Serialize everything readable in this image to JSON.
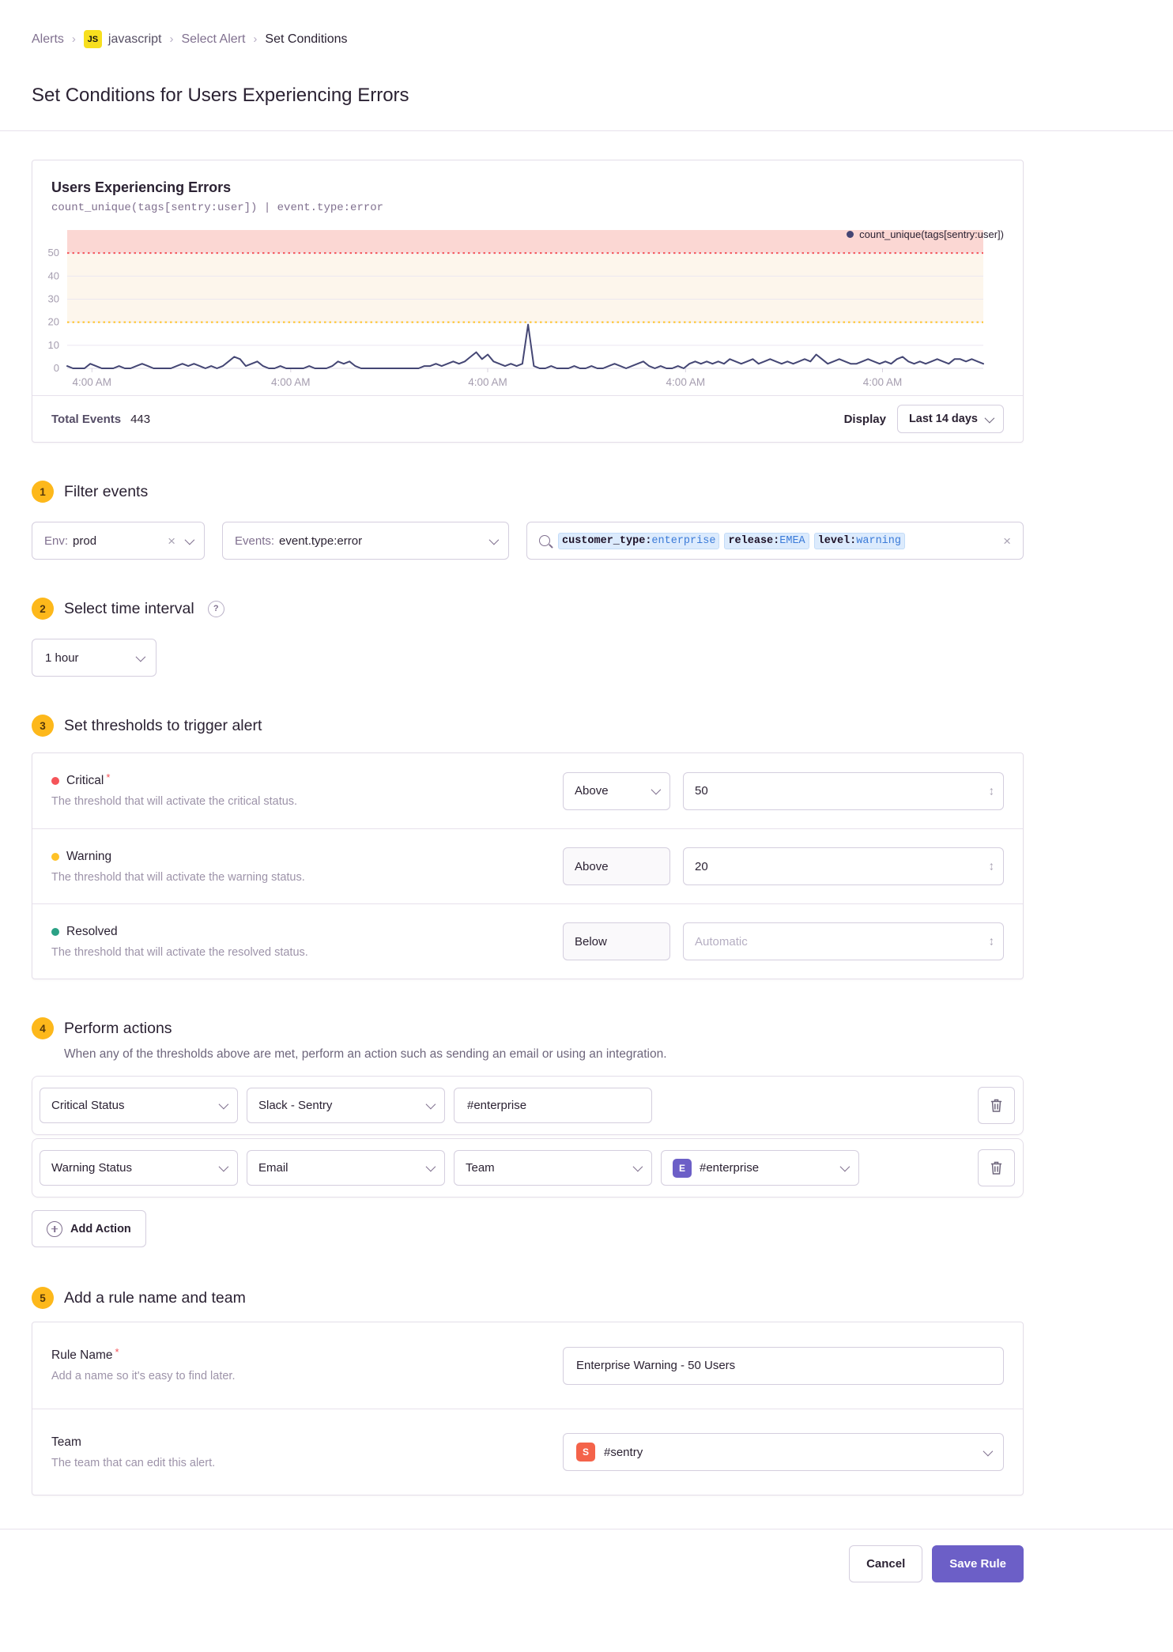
{
  "icons": {
    "close": "×",
    "stepper": "↕",
    "help": "?"
  },
  "breadcrumb": {
    "project_badge": "JS",
    "items": [
      "Alerts",
      "javascript",
      "Select Alert",
      "Set Conditions"
    ]
  },
  "page": {
    "title": "Set Conditions for Users Experiencing Errors"
  },
  "chart_panel": {
    "title": "Users Experiencing Errors",
    "query": "count_unique(tags[sentry:user]) | event.type:error",
    "legend": "count_unique(tags[sentry:user])",
    "footer": {
      "total_label": "Total Events",
      "total_value": "443",
      "display_label": "Display",
      "range": "Last 14 days"
    }
  },
  "chart_data": {
    "type": "line",
    "title": "Users Experiencing Errors",
    "ylabel": "",
    "xlabel": "",
    "ylim": [
      0,
      60
    ],
    "y_ticks": [
      0,
      10,
      20,
      30,
      40,
      50
    ],
    "x_tick_labels": [
      "4:00 AM",
      "4:00 AM",
      "4:00 AM",
      "4:00 AM",
      "4:00 AM"
    ],
    "x_tick_positions": [
      0.027,
      0.244,
      0.459,
      0.675,
      0.89
    ],
    "thresholds": {
      "critical": 50,
      "warning": 20
    },
    "colors": {
      "line": "#444674",
      "critical": "#f55459",
      "warning": "#ffc227",
      "critical_band": "#fbd7d3",
      "warning_band": "#fdf6ec"
    },
    "legend_position": "top-right",
    "series": [
      {
        "name": "count_unique(tags[sentry:user])",
        "values": [
          1,
          0,
          0,
          0,
          2,
          1,
          0,
          0,
          0,
          1,
          0,
          0,
          1,
          2,
          1,
          0,
          0,
          0,
          0,
          1,
          2,
          1,
          2,
          1,
          0,
          1,
          0,
          1,
          3,
          5,
          4,
          1,
          2,
          3,
          1,
          0,
          0,
          1,
          0,
          0,
          0,
          0,
          1,
          0,
          0,
          0,
          1,
          3,
          2,
          3,
          1,
          0,
          0,
          0,
          0,
          0,
          0,
          0,
          0,
          0,
          0,
          0,
          1,
          1,
          2,
          1,
          2,
          3,
          2,
          3,
          5,
          7,
          4,
          6,
          3,
          2,
          1,
          2,
          1,
          2,
          19,
          1,
          0,
          0,
          1,
          0,
          0,
          0,
          1,
          0,
          0,
          1,
          0,
          0,
          1,
          2,
          1,
          0,
          1,
          2,
          3,
          1,
          0,
          1,
          0,
          0,
          1,
          0,
          2,
          3,
          2,
          3,
          2,
          3,
          2,
          4,
          3,
          2,
          3,
          4,
          2,
          3,
          4,
          3,
          2,
          3,
          2,
          3,
          4,
          3,
          6,
          4,
          2,
          3,
          4,
          3,
          2,
          2,
          3,
          4,
          3,
          2,
          3,
          2,
          4,
          5,
          3,
          2,
          3,
          2,
          3,
          4,
          3,
          2,
          4,
          4,
          3,
          4,
          3,
          2
        ]
      }
    ]
  },
  "sections": {
    "filter": {
      "num": "1",
      "title": "Filter events",
      "env": {
        "label": "Env:",
        "value": "prod"
      },
      "events": {
        "label": "Events:",
        "value": "event.type:error"
      },
      "search": {
        "tokens": [
          {
            "key": "customer_type:",
            "value": "enterprise"
          },
          {
            "key": "release:",
            "value": "EMEA"
          },
          {
            "key": "level:",
            "value": "warning"
          }
        ]
      }
    },
    "interval": {
      "num": "2",
      "title": "Select time interval",
      "value": "1 hour"
    },
    "thresholds": {
      "num": "3",
      "title": "Set thresholds to trigger alert",
      "rows": [
        {
          "name": "Critical",
          "required": true,
          "desc": "The threshold that will activate the critical status.",
          "op": "Above",
          "value": "50",
          "placeholder": "",
          "dot": "#f55459"
        },
        {
          "name": "Warning",
          "required": false,
          "desc": "The threshold that will activate the warning status.",
          "op": "Above",
          "value": "20",
          "placeholder": "",
          "dot": "#ffc227"
        },
        {
          "name": "Resolved",
          "required": false,
          "desc": "The threshold that will activate the resolved status.",
          "op": "Below",
          "value": "",
          "placeholder": "Automatic",
          "dot": "#2ba185"
        }
      ]
    },
    "actions": {
      "num": "4",
      "title": "Perform actions",
      "desc": "When any of the thresholds above are met, perform an action such as sending an email or using an integration.",
      "rows": [
        {
          "status": "Critical Status",
          "service": "Slack - Sentry",
          "target_input": "#enterprise"
        },
        {
          "status": "Warning Status",
          "service": "Email",
          "target_type": "Team",
          "target": "#enterprise",
          "avatar": "E",
          "avatar_color": "#6c5fc7"
        }
      ],
      "add_button": "Add Action"
    },
    "rule": {
      "num": "5",
      "title": "Add a rule name and team",
      "name_row": {
        "label": "Rule Name",
        "required": true,
        "desc": "Add a name so it's easy to find later.",
        "value": "Enterprise Warning - 50 Users"
      },
      "team_row": {
        "label": "Team",
        "required": false,
        "desc": "The team that can edit this alert.",
        "value": "#sentry",
        "avatar": "S",
        "avatar_color": "#f4634a"
      }
    }
  },
  "footer": {
    "cancel": "Cancel",
    "save": "Save Rule"
  }
}
